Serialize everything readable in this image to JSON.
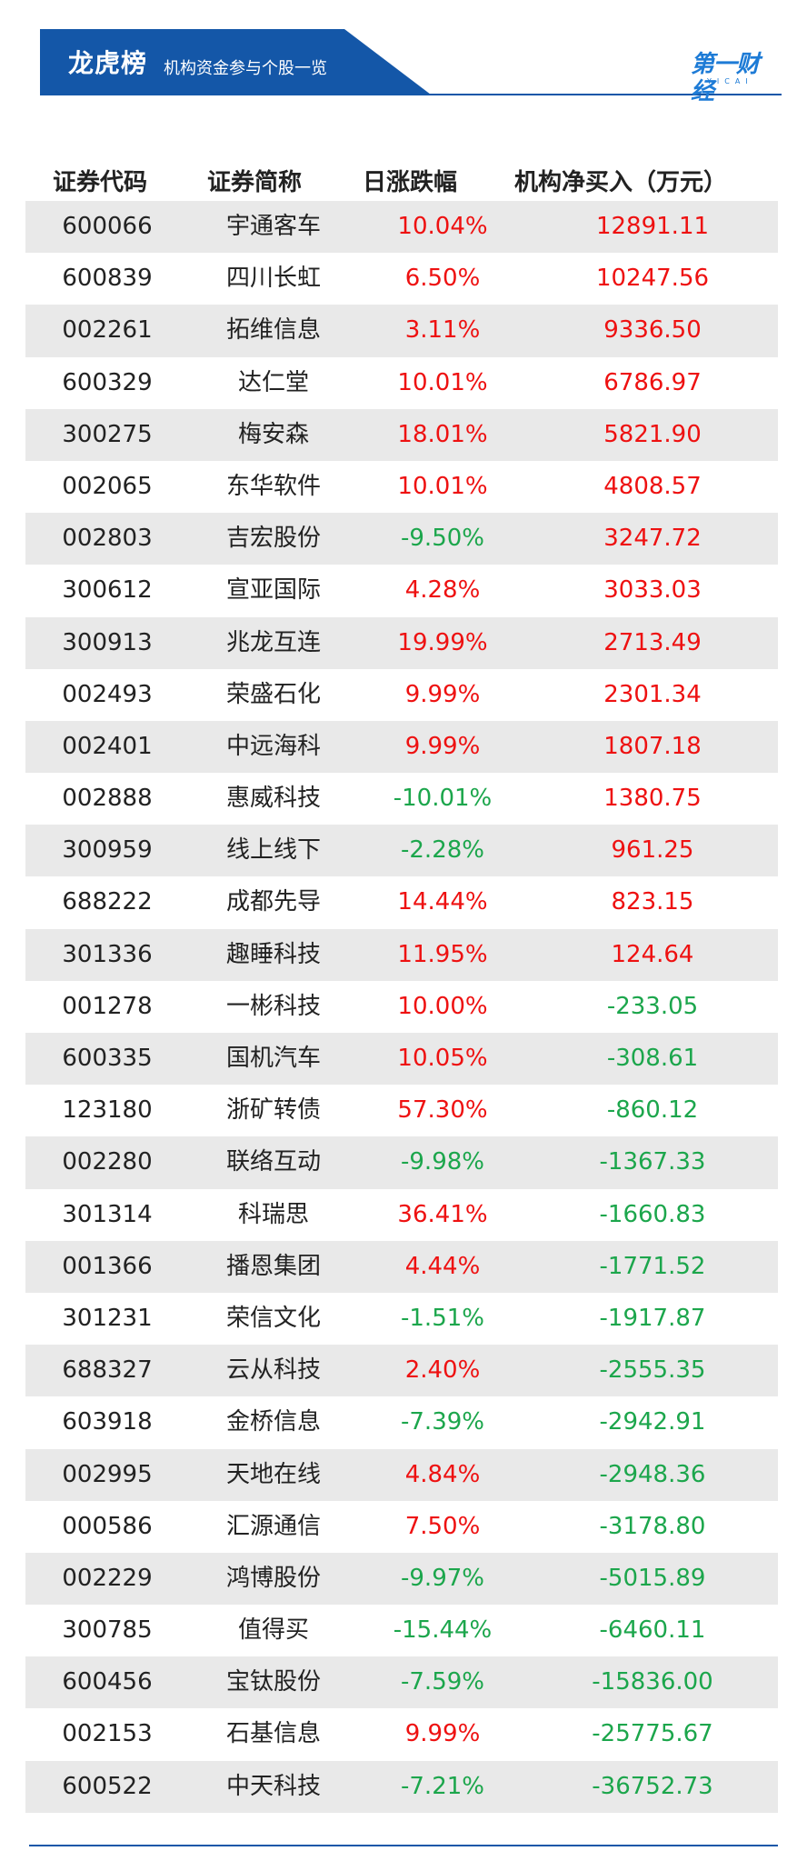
{
  "banner": {
    "title": "龙虎榜",
    "subtitle": "机构资金参与个股一览"
  },
  "logo": {
    "text": "第一财经",
    "sub": "YICAI"
  },
  "colors": {
    "brand": "#1457a8",
    "up": "#ee1111",
    "down": "#1ca64c",
    "row_alt": "#e9e9e9"
  },
  "table": {
    "headers": [
      "证券代码",
      "证券简称",
      "日涨跌幅",
      "机构净买入（万元）"
    ],
    "rows": [
      {
        "code": "600066",
        "name": "宇通客车",
        "change": "10.04%",
        "net": "12891.11"
      },
      {
        "code": "600839",
        "name": "四川长虹",
        "change": "6.50%",
        "net": "10247.56"
      },
      {
        "code": "002261",
        "name": "拓维信息",
        "change": "3.11%",
        "net": "9336.50"
      },
      {
        "code": "600329",
        "name": "达仁堂",
        "change": "10.01%",
        "net": "6786.97"
      },
      {
        "code": "300275",
        "name": "梅安森",
        "change": "18.01%",
        "net": "5821.90"
      },
      {
        "code": "002065",
        "name": "东华软件",
        "change": "10.01%",
        "net": "4808.57"
      },
      {
        "code": "002803",
        "name": "吉宏股份",
        "change": "-9.50%",
        "net": "3247.72"
      },
      {
        "code": "300612",
        "name": "宣亚国际",
        "change": "4.28%",
        "net": "3033.03"
      },
      {
        "code": "300913",
        "name": "兆龙互连",
        "change": "19.99%",
        "net": "2713.49"
      },
      {
        "code": "002493",
        "name": "荣盛石化",
        "change": "9.99%",
        "net": "2301.34"
      },
      {
        "code": "002401",
        "name": "中远海科",
        "change": "9.99%",
        "net": "1807.18"
      },
      {
        "code": "002888",
        "name": "惠威科技",
        "change": "-10.01%",
        "net": "1380.75"
      },
      {
        "code": "300959",
        "name": "线上线下",
        "change": "-2.28%",
        "net": "961.25"
      },
      {
        "code": "688222",
        "name": "成都先导",
        "change": "14.44%",
        "net": "823.15"
      },
      {
        "code": "301336",
        "name": "趣睡科技",
        "change": "11.95%",
        "net": "124.64"
      },
      {
        "code": "001278",
        "name": "一彬科技",
        "change": "10.00%",
        "net": "-233.05"
      },
      {
        "code": "600335",
        "name": "国机汽车",
        "change": "10.05%",
        "net": "-308.61"
      },
      {
        "code": "123180",
        "name": "浙矿转债",
        "change": "57.30%",
        "net": "-860.12"
      },
      {
        "code": "002280",
        "name": "联络互动",
        "change": "-9.98%",
        "net": "-1367.33"
      },
      {
        "code": "301314",
        "name": "科瑞思",
        "change": "36.41%",
        "net": "-1660.83"
      },
      {
        "code": "001366",
        "name": "播恩集团",
        "change": "4.44%",
        "net": "-1771.52"
      },
      {
        "code": "301231",
        "name": "荣信文化",
        "change": "-1.51%",
        "net": "-1917.87"
      },
      {
        "code": "688327",
        "name": "云从科技",
        "change": "2.40%",
        "net": "-2555.35"
      },
      {
        "code": "603918",
        "name": "金桥信息",
        "change": "-7.39%",
        "net": "-2942.91"
      },
      {
        "code": "002995",
        "name": "天地在线",
        "change": "4.84%",
        "net": "-2948.36"
      },
      {
        "code": "000586",
        "name": "汇源通信",
        "change": "7.50%",
        "net": "-3178.80"
      },
      {
        "code": "002229",
        "name": "鸿博股份",
        "change": "-9.97%",
        "net": "-5015.89"
      },
      {
        "code": "300785",
        "name": "值得买",
        "change": "-15.44%",
        "net": "-6460.11"
      },
      {
        "code": "600456",
        "name": "宝钛股份",
        "change": "-7.59%",
        "net": "-15836.00"
      },
      {
        "code": "002153",
        "name": "石基信息",
        "change": "9.99%",
        "net": "-25775.67"
      },
      {
        "code": "600522",
        "name": "中天科技",
        "change": "-7.21%",
        "net": "-36752.73"
      }
    ]
  }
}
